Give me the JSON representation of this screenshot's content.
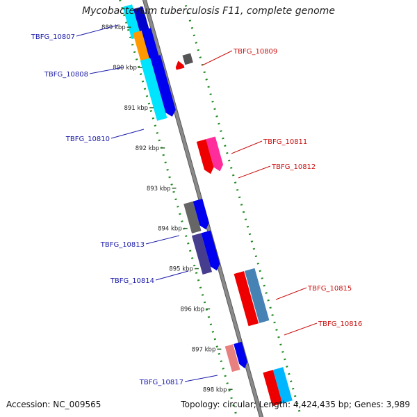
{
  "title": "Mycobacterium tuberculosis F11, complete genome",
  "footer": {
    "accession": "Accession: NC_009565",
    "summary": "Topology: circular; Length: 4,424,435 bp; Genes: 3,989"
  },
  "colors": {
    "left_label": "#1a1aaa",
    "right_label": "#cc1111",
    "backbone": "#8a8a8a",
    "track_dots": "#1f8a1f"
  },
  "ticks": [
    "889 kbp",
    "890 kbp",
    "891 kbp",
    "892 kbp",
    "893 kbp",
    "894 kbp",
    "895 kbp",
    "896 kbp",
    "897 kbp",
    "898 kbp"
  ],
  "genes_left": [
    {
      "name": "TBFG_10807"
    },
    {
      "name": "TBFG_10808"
    },
    {
      "name": "TBFG_10810"
    },
    {
      "name": "TBFG_10813"
    },
    {
      "name": "TBFG_10814"
    },
    {
      "name": "TBFG_10817"
    }
  ],
  "genes_right": [
    {
      "name": "TBFG_10809"
    },
    {
      "name": "TBFG_10811"
    },
    {
      "name": "TBFG_10812"
    },
    {
      "name": "TBFG_10815"
    },
    {
      "name": "TBFG_10816"
    }
  ]
}
